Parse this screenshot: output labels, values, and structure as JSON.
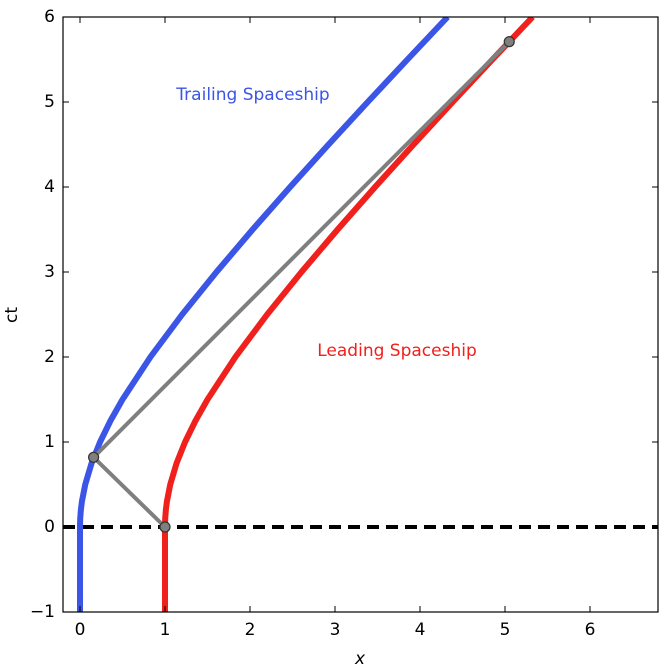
{
  "chart_data": {
    "type": "line",
    "xlabel": "x",
    "ylabel": "ct",
    "xlim": [
      -0.2,
      6.8
    ],
    "ylim": [
      -1,
      6
    ],
    "xticks": [
      0,
      1,
      2,
      3,
      4,
      5,
      6
    ],
    "yticks": [
      {
        "value": -1,
        "label": "−1"
      },
      0,
      1,
      2,
      3,
      4,
      5,
      6
    ],
    "series": [
      {
        "name": "Trailing Spaceship",
        "color": "#3b55e6",
        "x": [
          0,
          0,
          0.0025,
          0.00998,
          0.0224,
          0.0616,
          0.136,
          0.2361,
          0.3585,
          0.5,
          0.8284,
          1.2016,
          1.6056,
          2.0311,
          2.4721,
          2.9244,
          3.3852,
          3.8524,
          4.3246
        ],
        "values": [
          -1,
          0,
          0.1,
          0.2,
          0.3,
          0.5,
          0.75,
          1,
          1.25,
          1.5,
          2,
          2.5,
          3,
          3.5,
          4,
          4.5,
          5,
          5.5,
          6
        ]
      },
      {
        "name": "Leading Spaceship",
        "color": "#f0201c",
        "x": [
          1,
          1,
          1.0025,
          1.00998,
          1.0224,
          1.0616,
          1.136,
          1.2361,
          1.3585,
          1.5,
          1.8284,
          2.2016,
          2.6056,
          3.0311,
          3.4721,
          3.9244,
          4.3852,
          4.8524,
          5.3246
        ],
        "values": [
          -1,
          0,
          0.1,
          0.2,
          0.3,
          0.5,
          0.75,
          1,
          1.25,
          1.5,
          2,
          2.5,
          3,
          3.5,
          4,
          4.5,
          5,
          5.5,
          6
        ]
      },
      {
        "color": "#7f7f7f",
        "markers": true,
        "x": [
          1,
          0.16,
          5.05
        ],
        "values": [
          0,
          0.82,
          5.71
        ]
      }
    ],
    "hlines": [
      {
        "y": 0,
        "color": "#000000",
        "dashed": true
      }
    ]
  }
}
